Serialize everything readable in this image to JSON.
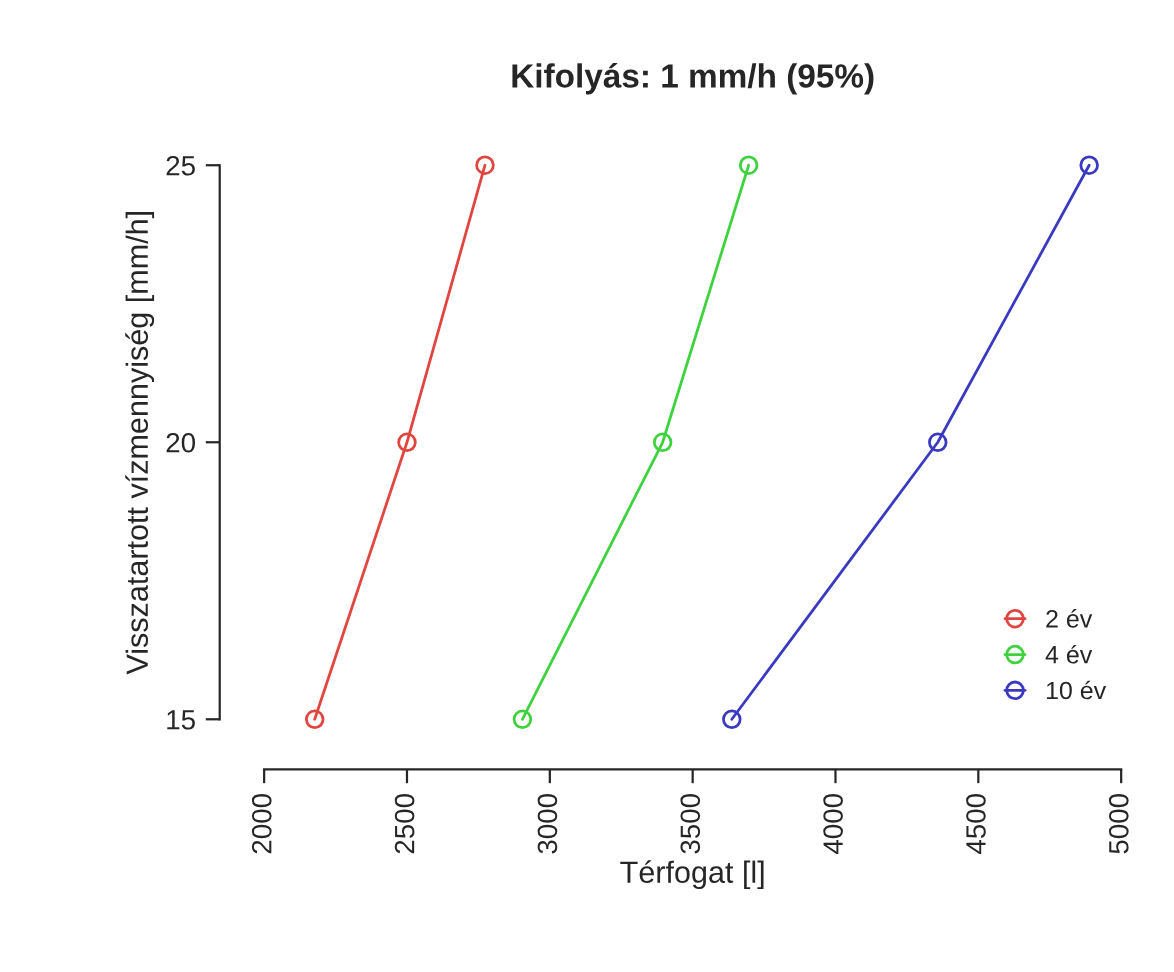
{
  "chart_data": {
    "type": "line",
    "title": "Kifolyás: 1 mm/h (95%)",
    "xlabel": "Térfogat [l]",
    "ylabel": "Visszatartott vízmennyiség [mm/h]",
    "xlim": [
      2000,
      5000
    ],
    "xticks": [
      2000,
      2500,
      3000,
      3500,
      4000,
      4500,
      5000
    ],
    "ylim": [
      15,
      25
    ],
    "yticks": [
      15,
      20,
      25
    ],
    "marker": "circle",
    "legend": "bottom right",
    "grid": false,
    "series": [
      {
        "name": "2 év",
        "color": "#e0453f",
        "x": [
          2177,
          2500,
          2773
        ],
        "values": [
          15,
          20,
          25
        ]
      },
      {
        "name": "4 év",
        "color": "#3fd23f",
        "x": [
          2904,
          3395,
          3696
        ],
        "values": [
          15,
          20,
          25
        ]
      },
      {
        "name": "10 év",
        "color": "#3a3ac0",
        "x": [
          3637,
          4358,
          4888
        ],
        "values": [
          15,
          20,
          25
        ]
      }
    ]
  }
}
